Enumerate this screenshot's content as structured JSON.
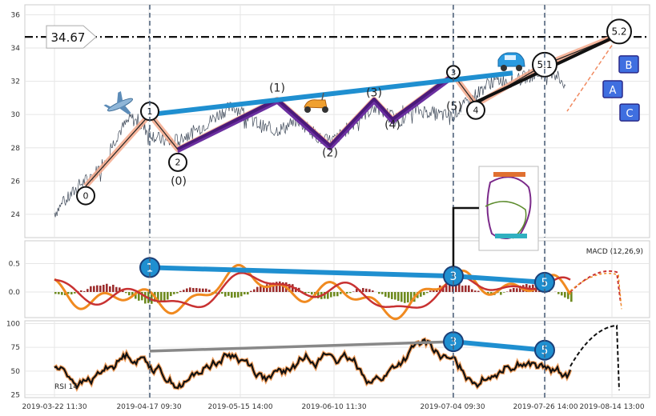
{
  "chart_data": [
    {
      "type": "line",
      "panel": "price",
      "y_range": [
        22.6,
        36.6
      ],
      "y_ticks": [
        "24",
        "26",
        "28",
        "30",
        "32",
        "34",
        "36"
      ],
      "x_tick_labels": [
        "2019-03-22 11:30",
        "2019-04-17 09:30",
        "2019-05-15 14:00",
        "2019-06-10 11:30",
        "2019-07-04 09:30",
        "2019-07-26 14:00",
        "2019-08-14 13:00"
      ],
      "price_series": [
        24.1,
        24.9,
        25.8,
        26.3,
        27.3,
        28.9,
        29.8,
        29.2,
        28.6,
        28.3,
        28.6,
        29.0,
        29.5,
        30.1,
        30.5,
        30.0,
        29.4,
        29.0,
        29.2,
        29.7,
        29.1,
        28.4,
        28.5,
        29.2,
        29.9,
        30.4,
        30.1,
        29.6,
        30.3,
        30.2,
        30.0,
        29.9,
        30.5,
        31.2,
        31.9,
        32.1,
        32.0,
        32.3,
        32.5,
        32.6,
        31.8
      ],
      "horizontal_level": {
        "value": 34.67,
        "label": "34.67"
      },
      "wave_labels": {
        "impulse": [
          "0",
          "1",
          "2",
          "3",
          "4",
          "5",
          "5.2"
        ],
        "minor": [
          "(0)",
          "(1)",
          "(2)",
          "(3)",
          "(4)",
          "(5)"
        ],
        "five_one": "5.1",
        "projections": [
          "A",
          "B",
          "C"
        ]
      },
      "wave_points": {
        "zero": 25.7,
        "one": 30.0,
        "two": 27.9,
        "three": 32.4,
        "four": 30.6,
        "five": 33.0,
        "five_two": 34.8,
        "m1": 30.9,
        "m2": 28.1,
        "m3": 30.9,
        "m4": 29.7
      }
    },
    {
      "type": "line",
      "panel": "macd",
      "label": "MACD (12,26,9)",
      "y_range": [
        -0.45,
        0.9
      ],
      "y_ticks": [
        "0.5",
        "0.0"
      ],
      "divergence_labels": [
        "1",
        "3",
        "5"
      ],
      "divergence_points": [
        0.43,
        0.28,
        0.17
      ]
    },
    {
      "type": "line",
      "panel": "rsi",
      "label": "RSI 14",
      "y_range": [
        22,
        103
      ],
      "y_ticks": [
        "100",
        "75",
        "50",
        "25"
      ],
      "divergence_labels": [
        "3",
        "5"
      ],
      "divergence_points": [
        81,
        72
      ]
    }
  ]
}
